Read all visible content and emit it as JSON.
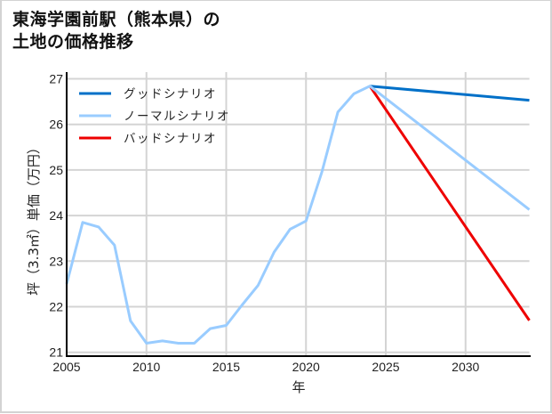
{
  "title_line1": "東海学園前駅（熊本県）の",
  "title_line2": "土地の価格推移",
  "chart_data": {
    "type": "line",
    "title": "東海学園前駅（熊本県）の土地の価格推移",
    "xlabel": "年",
    "ylabel": "坪（3.3㎡）単価（万円）",
    "xlim": [
      2005,
      2034
    ],
    "ylim": [
      21,
      27
    ],
    "xticks": [
      2005,
      2010,
      2015,
      2020,
      2025,
      2030
    ],
    "yticks": [
      21,
      22,
      23,
      24,
      25,
      26,
      27
    ],
    "grid": true,
    "legend_position": "upper left",
    "series": [
      {
        "name": "グッドシナリオ",
        "color": "#0070c8",
        "x": [
          2024,
          2034
        ],
        "values": [
          26.84,
          26.53
        ]
      },
      {
        "name": "ノーマルシナリオ",
        "color": "#99ccff",
        "x": [
          2005,
          2006,
          2007,
          2008,
          2009,
          2010,
          2011,
          2012,
          2013,
          2014,
          2015,
          2016,
          2017,
          2018,
          2019,
          2020,
          2021,
          2022,
          2023,
          2024,
          2034
        ],
        "values": [
          22.5,
          23.85,
          23.75,
          23.35,
          21.69,
          21.2,
          21.25,
          21.2,
          21.2,
          21.52,
          21.59,
          22.04,
          22.47,
          23.2,
          23.7,
          23.88,
          24.96,
          26.27,
          26.67,
          26.84,
          24.13
        ]
      },
      {
        "name": "バッドシナリオ",
        "color": "#ee0000",
        "x": [
          2024,
          2034
        ],
        "values": [
          26.84,
          21.7
        ]
      }
    ]
  },
  "axis": {
    "x_ticks": [
      "2005",
      "2010",
      "2015",
      "2020",
      "2025",
      "2030"
    ],
    "y_ticks": [
      "21",
      "22",
      "23",
      "24",
      "25",
      "26",
      "27"
    ],
    "xlabel": "年",
    "ylabel": "坪（3.3㎡）単価（万円）"
  },
  "legend": [
    {
      "label": "グッドシナリオ",
      "color": "#0070c8"
    },
    {
      "label": "ノーマルシナリオ",
      "color": "#99ccff"
    },
    {
      "label": "バッドシナリオ",
      "color": "#ee0000"
    }
  ]
}
